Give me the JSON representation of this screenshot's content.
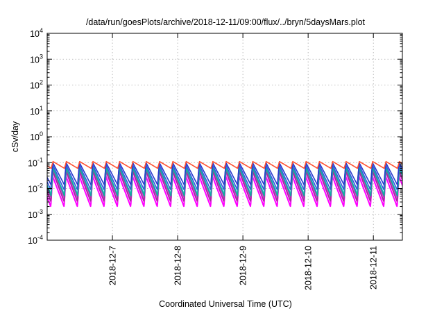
{
  "chart_data": {
    "type": "line",
    "title": "/data/run/goesPlots/archive/2018-12-11/09:00/flux/../bryn/5daysMars.plot",
    "xlabel": "Coordinated Universal Time (UTC)",
    "ylabel": "cSv/day",
    "xlim": [
      "2018-12-06T00:00",
      "2018-12-11T10:40"
    ],
    "ylim": [
      0.0001,
      10000
    ],
    "yscale": "log",
    "x_ticks": [
      {
        "date": "2018-12-07T00:00",
        "label": "2018-12-7"
      },
      {
        "date": "2018-12-08T00:00",
        "label": "2018-12-8"
      },
      {
        "date": "2018-12-09T00:00",
        "label": "2018-12-9"
      },
      {
        "date": "2018-12-10T00:00",
        "label": "2018-12-10"
      },
      {
        "date": "2018-12-11T00:00",
        "label": "2018-12-11"
      }
    ],
    "y_ticks": [
      {
        "value": 0.0001,
        "base": "10",
        "exp": "-4"
      },
      {
        "value": 0.001,
        "base": "10",
        "exp": "-3"
      },
      {
        "value": 0.01,
        "base": "10",
        "exp": "-2"
      },
      {
        "value": 0.1,
        "base": "10",
        "exp": "-1"
      },
      {
        "value": 1,
        "base": "10",
        "exp": "0"
      },
      {
        "value": 10,
        "base": "10",
        "exp": "1"
      },
      {
        "value": 100,
        "base": "10",
        "exp": "2"
      },
      {
        "value": 1000,
        "base": "10",
        "exp": "3"
      },
      {
        "value": 10000,
        "base": "10",
        "exp": "4"
      }
    ],
    "grid": true,
    "pattern": {
      "period_hours": 4.9,
      "first_peak": "2018-12-06T02:00",
      "ramp_fraction": 0.14
    },
    "series": [
      {
        "color": "#ff00ff",
        "peak": 0.03,
        "trough": 0.002
      },
      {
        "color": "#ee1ee8",
        "peak": 0.045,
        "trough": 0.003
      },
      {
        "color": "#d62fd0",
        "peak": 0.06,
        "trough": 0.0042
      },
      {
        "color": "#a0309a",
        "peak": 0.05,
        "trough": 0.0032
      },
      {
        "color": "#1fb8c8",
        "peak": 0.07,
        "trough": 0.006
      },
      {
        "color": "#16a79a",
        "peak": 0.06,
        "trough": 0.005
      },
      {
        "color": "#3355dd",
        "peak": 0.085,
        "trough": 0.009
      },
      {
        "color": "#2a3acc",
        "peak": 0.1,
        "trough": 0.014
      },
      {
        "color": "#ff5030",
        "peak": 0.11,
        "trough": 0.06
      }
    ]
  }
}
